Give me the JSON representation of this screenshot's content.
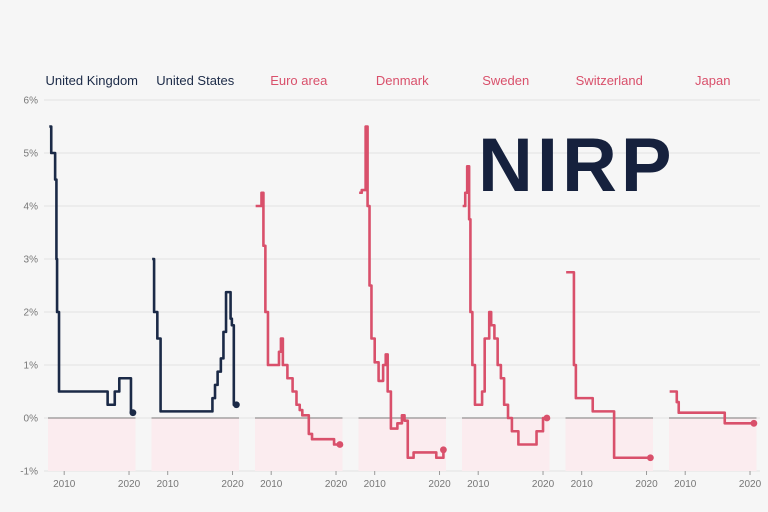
{
  "logo": {
    "text": "NIRP"
  },
  "colors": {
    "positive": "#1b2a47",
    "negative": "#d9506b",
    "zero_line": "#555555",
    "below_zero_fill": "#fbecef",
    "grid": "#e2e2e2"
  },
  "chart_data": {
    "type": "line",
    "subtype": "small-multiples step line",
    "title": "",
    "xlabel": "",
    "ylabel": "",
    "ylim": [
      -1,
      6
    ],
    "y_ticks": [
      "-1%",
      "0%",
      "1%",
      "2%",
      "3%",
      "4%",
      "5%",
      "6%"
    ],
    "x_ticks": [
      "2010",
      "2020"
    ],
    "xlim": [
      2007.5,
      2021
    ],
    "grid": true,
    "panels": [
      {
        "name": "United Kingdom",
        "negative_rates": false,
        "x": [
          2007.7,
          2008.0,
          2008.3,
          2008.6,
          2008.8,
          2008.9,
          2009.2,
          2016.6,
          2016.7,
          2017.8,
          2018.5,
          2020.2,
          2020.3,
          2020.6
        ],
        "y": [
          5.5,
          5.0,
          5.0,
          4.5,
          3.0,
          2.0,
          0.5,
          0.5,
          0.25,
          0.5,
          0.75,
          0.75,
          0.1,
          0.1
        ]
      },
      {
        "name": "United States",
        "negative_rates": false,
        "x": [
          2007.6,
          2007.9,
          2008.1,
          2008.4,
          2008.9,
          2015.9,
          2016.9,
          2017.3,
          2017.7,
          2018.2,
          2018.6,
          2019.0,
          2019.5,
          2019.7,
          2019.9,
          2020.2,
          2020.6
        ],
        "y": [
          3.0,
          2.0,
          2.0,
          1.5,
          0.125,
          0.125,
          0.375,
          0.625,
          0.875,
          1.125,
          1.625,
          2.375,
          2.375,
          1.875,
          1.75,
          0.25,
          0.25
        ]
      },
      {
        "name": "Euro area",
        "negative_rates": true,
        "x": [
          2007.6,
          2008.0,
          2008.5,
          2008.8,
          2009.1,
          2009.5,
          2011.2,
          2011.5,
          2011.8,
          2012.5,
          2013.3,
          2013.9,
          2014.4,
          2014.8,
          2015.8,
          2016.3,
          2019.7,
          2020.6
        ],
        "y": [
          4.0,
          4.0,
          4.25,
          3.25,
          2.0,
          1.0,
          1.25,
          1.5,
          1.0,
          0.75,
          0.5,
          0.25,
          0.15,
          0.05,
          -0.3,
          -0.4,
          -0.5,
          -0.5
        ]
      },
      {
        "name": "Denmark",
        "negative_rates": true,
        "x": [
          2007.6,
          2008.0,
          2008.6,
          2008.9,
          2009.2,
          2009.5,
          2010.0,
          2010.6,
          2011.3,
          2011.7,
          2012.0,
          2012.5,
          2013.5,
          2014.2,
          2014.6,
          2015.1,
          2016.0,
          2019.5,
          2020.6
        ],
        "y": [
          4.25,
          4.3,
          5.5,
          4.0,
          2.5,
          1.5,
          1.05,
          0.7,
          1.0,
          1.2,
          0.5,
          -0.2,
          -0.1,
          0.05,
          -0.05,
          -0.75,
          -0.65,
          -0.75,
          -0.6
        ]
      },
      {
        "name": "Sweden",
        "negative_rates": true,
        "x": [
          2007.6,
          2008.0,
          2008.3,
          2008.6,
          2008.8,
          2009.1,
          2009.5,
          2010.6,
          2011.0,
          2011.7,
          2012.0,
          2012.5,
          2013.0,
          2013.5,
          2014.0,
          2014.6,
          2015.2,
          2016.2,
          2019.0,
          2020.0,
          2020.6
        ],
        "y": [
          4.0,
          4.25,
          4.75,
          3.75,
          2.0,
          1.0,
          0.25,
          0.5,
          1.5,
          2.0,
          1.75,
          1.5,
          1.0,
          0.75,
          0.25,
          0.0,
          -0.25,
          -0.5,
          -0.25,
          0.0,
          0.0
        ]
      },
      {
        "name": "Switzerland",
        "negative_rates": true,
        "x": [
          2007.6,
          2008.4,
          2008.8,
          2009.1,
          2011.7,
          2015.0,
          2020.6
        ],
        "y": [
          2.75,
          2.75,
          1.0,
          0.375,
          0.125,
          -0.75,
          -0.75
        ]
      },
      {
        "name": "Japan",
        "negative_rates": true,
        "x": [
          2007.6,
          2008.3,
          2008.7,
          2009.0,
          2016.1,
          2020.6
        ],
        "y": [
          0.5,
          0.5,
          0.3,
          0.1,
          -0.1,
          -0.1
        ]
      }
    ]
  }
}
